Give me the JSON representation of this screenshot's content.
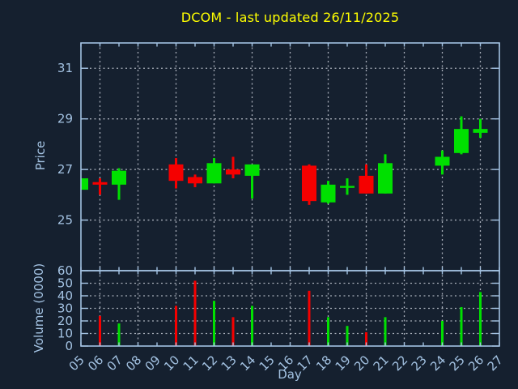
{
  "colors": {
    "background": "#15202f",
    "frame": "#a3c2e2",
    "grid": "#b8bec8",
    "bullish": "#00e000",
    "bearish": "#f50000",
    "title": "#ffff00",
    "tick_label": "#a3c2e2"
  },
  "chart_data": {
    "type": "candlestick",
    "title": "DCOM - last updated 26/11/2025",
    "xlabel": "Day",
    "price_axis": {
      "label": "Price",
      "ticks": [
        25,
        27,
        29,
        31
      ],
      "range": [
        23,
        32
      ]
    },
    "volume_axis": {
      "label": "Volume (0000)",
      "ticks": [
        0,
        10,
        20,
        30,
        40,
        50,
        60
      ],
      "range": [
        0,
        60
      ]
    },
    "x_axis": {
      "tick_labels": [
        "05",
        "06",
        "07",
        "08",
        "09",
        "10",
        "11",
        "12",
        "13",
        "14",
        "15",
        "16",
        "17",
        "18",
        "19",
        "20",
        "21",
        "22",
        "23",
        "24",
        "25",
        "26",
        "27"
      ],
      "first_day": 5,
      "last_day": 27,
      "grid_every_other_day": true
    },
    "candles": [
      {
        "day": 5,
        "label": "05",
        "open": 26.2,
        "high": 26.65,
        "low": 26.2,
        "close": 26.65,
        "volume": 0
      },
      {
        "day": 6,
        "label": "06",
        "open": 26.5,
        "high": 26.65,
        "low": 26.0,
        "close": 26.4,
        "volume": 24
      },
      {
        "day": 7,
        "label": "07",
        "open": 26.4,
        "high": 27.05,
        "low": 25.8,
        "close": 26.95,
        "volume": 18
      },
      {
        "day": 10,
        "label": "10",
        "open": 27.2,
        "high": 27.45,
        "low": 26.25,
        "close": 26.55,
        "volume": 32
      },
      {
        "day": 11,
        "label": "11",
        "open": 26.7,
        "high": 26.8,
        "low": 26.3,
        "close": 26.45,
        "volume": 52
      },
      {
        "day": 12,
        "label": "12",
        "open": 26.45,
        "high": 27.45,
        "low": 26.45,
        "close": 27.25,
        "volume": 36
      },
      {
        "day": 13,
        "label": "13",
        "open": 27.0,
        "high": 27.5,
        "low": 26.65,
        "close": 26.8,
        "volume": 23
      },
      {
        "day": 14,
        "label": "14",
        "open": 26.75,
        "high": 27.2,
        "low": 25.85,
        "close": 27.2,
        "volume": 32
      },
      {
        "day": 17,
        "label": "17",
        "open": 27.15,
        "high": 27.2,
        "low": 25.6,
        "close": 25.75,
        "volume": 44
      },
      {
        "day": 18,
        "label": "18",
        "open": 25.7,
        "high": 26.55,
        "low": 25.65,
        "close": 26.4,
        "volume": 23
      },
      {
        "day": 19,
        "label": "19",
        "open": 26.35,
        "high": 26.65,
        "low": 26.0,
        "close": 26.35,
        "volume": 16
      },
      {
        "day": 20,
        "label": "20",
        "open": 26.75,
        "high": 27.2,
        "low": 26.05,
        "close": 26.05,
        "volume": 11
      },
      {
        "day": 21,
        "label": "21",
        "open": 26.05,
        "high": 27.6,
        "low": 26.05,
        "close": 27.25,
        "volume": 23
      },
      {
        "day": 24,
        "label": "24",
        "open": 27.15,
        "high": 27.75,
        "low": 26.8,
        "close": 27.5,
        "volume": 20
      },
      {
        "day": 25,
        "label": "25",
        "open": 27.65,
        "high": 29.1,
        "low": 27.6,
        "close": 28.6,
        "volume": 31
      },
      {
        "day": 26,
        "label": "26",
        "open": 28.45,
        "high": 29.0,
        "low": 28.25,
        "close": 28.6,
        "volume": 43
      }
    ]
  }
}
